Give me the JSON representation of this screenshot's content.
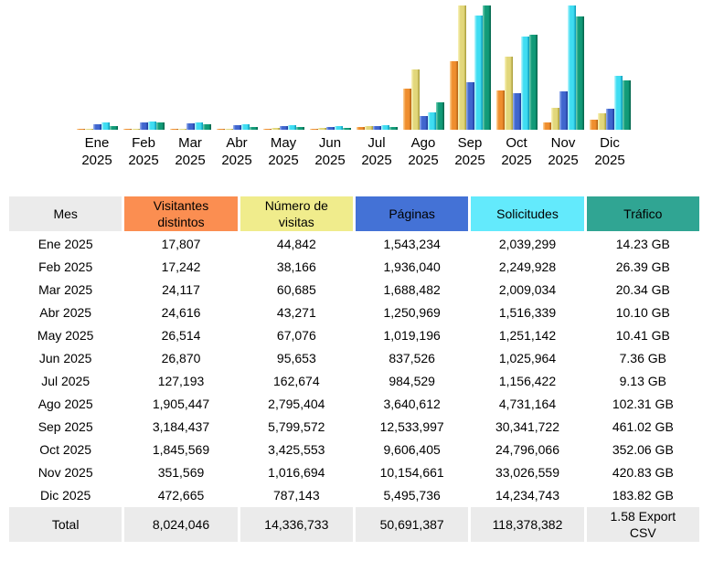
{
  "chart_data": {
    "type": "bar",
    "title": "",
    "xlabel": "",
    "ylabel": "",
    "grid": false,
    "legend_position": "table-header-colors",
    "scaling_note": "AWStats-style scaling: visitors and visits bars scaled to max visits (5,799,572); pages and hits bars scaled to max hits (33,026,559); traffic bars scaled to max traffic (461.02 GB); bar area height 136px",
    "categories": [
      "Ene 2025",
      "Feb 2025",
      "Mar 2025",
      "Abr 2025",
      "May 2025",
      "Jun 2025",
      "Jul 2025",
      "Ago 2025",
      "Sep 2025",
      "Oct 2025",
      "Nov 2025",
      "Dic 2025"
    ],
    "series": [
      {
        "key": "visitantes-distintos",
        "name": "Visitantes distintos",
        "scale_group": "visits",
        "color_light": "#FFD8A0",
        "color": "#EF8E2E",
        "color_dark": "#B05E10",
        "values": [
          17807,
          17242,
          24117,
          24616,
          26514,
          26870,
          127193,
          1905447,
          3184437,
          1845569,
          351569,
          472665
        ]
      },
      {
        "key": "numero-de-visitas",
        "name": "Número de visitas",
        "scale_group": "visits",
        "color_light": "#FAF4BE",
        "color": "#E2D77B",
        "color_dark": "#A59836",
        "values": [
          44842,
          38166,
          60685,
          43271,
          67076,
          95653,
          162674,
          2795404,
          5799572,
          3425553,
          1016694,
          787143
        ]
      },
      {
        "key": "paginas",
        "name": "Páginas",
        "scale_group": "hits",
        "color_light": "#9FB6F0",
        "color": "#4066CE",
        "color_dark": "#1C3899",
        "values": [
          1543234,
          1936040,
          1688482,
          1250969,
          1019196,
          837526,
          984529,
          3640612,
          12533997,
          9606405,
          10154661,
          5495736
        ]
      },
      {
        "key": "solicitudes",
        "name": "Solicitudes",
        "scale_group": "hits",
        "color_light": "#C6F7FD",
        "color": "#3FDDF2",
        "color_dark": "#0795B2",
        "values": [
          2039299,
          2249928,
          2009034,
          1516339,
          1251142,
          1025964,
          1156422,
          4731164,
          30341722,
          24796066,
          33026559,
          14234743
        ]
      },
      {
        "key": "trafico",
        "name": "Tráfico (GB)",
        "scale_group": "bytes",
        "color_light": "#7AD2B9",
        "color": "#129B78",
        "color_dark": "#005E46",
        "values": [
          14.23,
          26.39,
          20.34,
          10.1,
          10.41,
          7.36,
          9.13,
          102.31,
          461.02,
          352.06,
          420.83,
          183.82
        ]
      }
    ]
  },
  "table": {
    "columns": [
      {
        "key": "mes",
        "label": "Mes",
        "color": "#EBEBEB"
      },
      {
        "key": "visitantes-distintos",
        "label": "Visitantes distintos",
        "color": "#FB8E51"
      },
      {
        "key": "numero-de-visitas",
        "label": "Número de visitas",
        "color": "#F0EC8C"
      },
      {
        "key": "paginas",
        "label": "Páginas",
        "color": "#4472D6"
      },
      {
        "key": "solicitudes",
        "label": "Solicitudes",
        "color": "#63EAFC"
      },
      {
        "key": "trafico",
        "label": "Tráfico",
        "color": "#30A593"
      }
    ],
    "rows": [
      [
        "Ene 2025",
        "17,807",
        "44,842",
        "1,543,234",
        "2,039,299",
        "14.23 GB"
      ],
      [
        "Feb 2025",
        "17,242",
        "38,166",
        "1,936,040",
        "2,249,928",
        "26.39 GB"
      ],
      [
        "Mar 2025",
        "24,117",
        "60,685",
        "1,688,482",
        "2,009,034",
        "20.34 GB"
      ],
      [
        "Abr 2025",
        "24,616",
        "43,271",
        "1,250,969",
        "1,516,339",
        "10.10 GB"
      ],
      [
        "May 2025",
        "26,514",
        "67,076",
        "1,019,196",
        "1,251,142",
        "10.41 GB"
      ],
      [
        "Jun 2025",
        "26,870",
        "95,653",
        "837,526",
        "1,025,964",
        "7.36 GB"
      ],
      [
        "Jul 2025",
        "127,193",
        "162,674",
        "984,529",
        "1,156,422",
        "9.13 GB"
      ],
      [
        "Ago 2025",
        "1,905,447",
        "2,795,404",
        "3,640,612",
        "4,731,164",
        "102.31 GB"
      ],
      [
        "Sep 2025",
        "3,184,437",
        "5,799,572",
        "12,533,997",
        "30,341,722",
        "461.02 GB"
      ],
      [
        "Oct 2025",
        "1,845,569",
        "3,425,553",
        "9,606,405",
        "24,796,066",
        "352.06 GB"
      ],
      [
        "Nov 2025",
        "351,569",
        "1,016,694",
        "10,154,661",
        "33,026,559",
        "420.83 GB"
      ],
      [
        "Dic 2025",
        "472,665",
        "787,143",
        "5,495,736",
        "14,234,743",
        "183.82 GB"
      ]
    ],
    "total_row": [
      "Total",
      "8,024,046",
      "14,336,733",
      "50,691,387",
      "118,378,382",
      "1.58 Export CSV"
    ],
    "total_bg": "#EBEBEB"
  }
}
